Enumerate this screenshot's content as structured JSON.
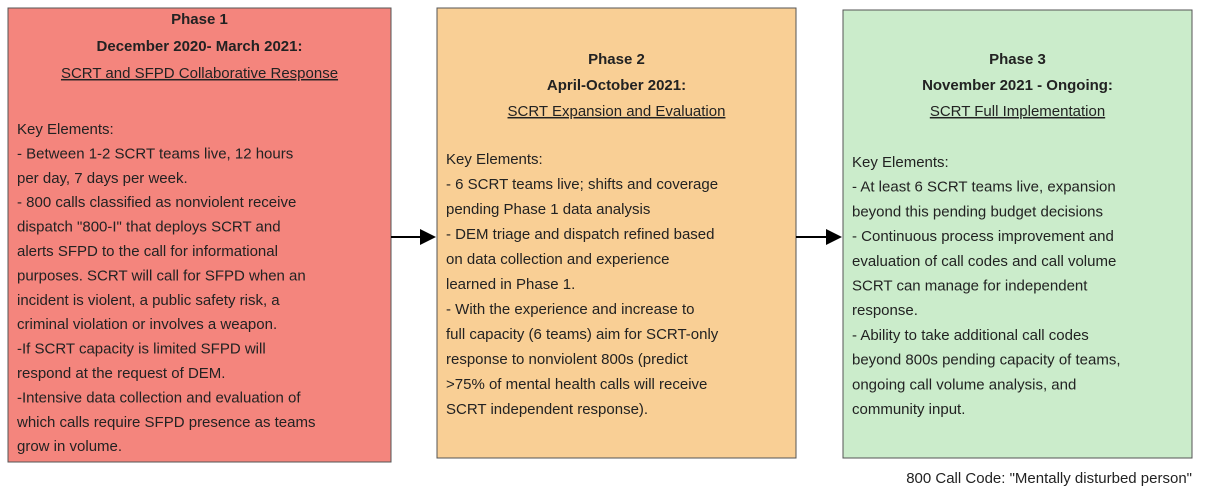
{
  "phases": [
    {
      "title": "Phase 1",
      "dates": "December 2020- March 2021:",
      "subtitle": "SCRT and SFPD Collaborative Response",
      "key_label": "Key Elements:",
      "lines": [
        "- Between 1-2 SCRT teams live, 12 hours",
        "per day, 7 days per week.",
        "- 800 calls classified as nonviolent receive",
        "dispatch \"800-I\" that deploys SCRT and",
        "alerts SFPD to the call for informational",
        "purposes. SCRT will call for SFPD when an",
        "incident is violent, a public safety risk, a",
        "criminal violation or involves a weapon.",
        "-If SCRT capacity is limited SFPD will",
        "respond at the request of DEM.",
        "-Intensive data collection and evaluation of",
        "which calls require SFPD presence as teams",
        "grow in volume."
      ]
    },
    {
      "title": "Phase 2",
      "dates": "April-October 2021:",
      "subtitle": "SCRT Expansion and Evaluation",
      "key_label": "Key Elements:",
      "lines": [
        "- 6 SCRT teams live; shifts and coverage",
        "pending Phase 1 data analysis",
        "- DEM triage and dispatch refined based",
        "on data collection and experience",
        "learned in Phase 1.",
        "- With the experience and increase to",
        "full capacity (6 teams) aim for SCRT-only",
        "response to nonviolent 800s (predict",
        ">75% of mental health calls will receive",
        "SCRT independent response)."
      ]
    },
    {
      "title": "Phase 3",
      "dates": "November 2021 - Ongoing:",
      "subtitle": "SCRT Full Implementation",
      "key_label": "Key Elements:",
      "lines": [
        "- At least 6 SCRT teams live, expansion",
        "beyond this pending budget decisions",
        "- Continuous process improvement and",
        "evaluation of call codes and call volume",
        "SCRT can manage for independent",
        "response.",
        "- Ability to take additional call codes",
        "beyond 800s pending capacity of teams,",
        "ongoing call volume analysis, and",
        "community input."
      ]
    }
  ],
  "footnote": "800 Call Code: \"Mentally disturbed person\""
}
